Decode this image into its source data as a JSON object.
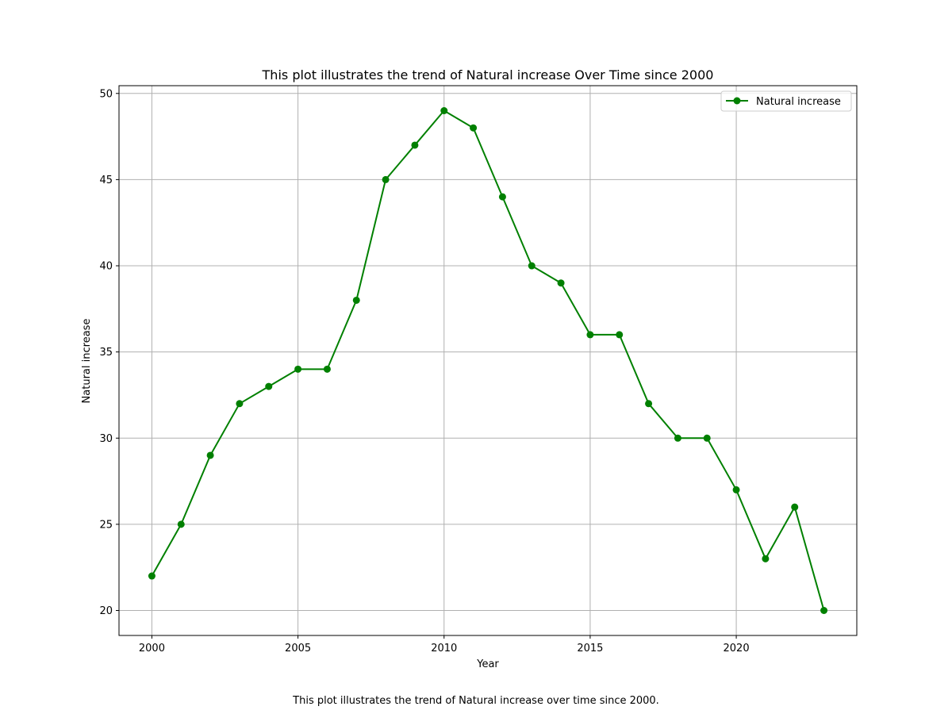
{
  "chart_data": {
    "type": "line",
    "title": "This plot illustrates the trend of Natural increase Over Time since 2000",
    "xlabel": "Year",
    "ylabel": "Natural increase",
    "x": [
      2000,
      2001,
      2002,
      2003,
      2004,
      2005,
      2006,
      2007,
      2008,
      2009,
      2010,
      2011,
      2012,
      2013,
      2014,
      2015,
      2016,
      2017,
      2018,
      2019,
      2020,
      2021,
      2022,
      2023
    ],
    "series": [
      {
        "name": "Natural increase",
        "color": "#008000",
        "values": [
          22,
          25,
          29,
          32,
          33,
          34,
          34,
          38,
          45,
          47,
          49,
          48,
          44,
          40,
          39,
          36,
          36,
          32,
          30,
          30,
          27,
          23,
          26,
          20
        ]
      }
    ],
    "xlim": [
      1998.875,
      2024.125
    ],
    "ylim": [
      18.55,
      50.45
    ],
    "xticks": [
      2000,
      2005,
      2010,
      2015,
      2020
    ],
    "yticks": [
      20,
      25,
      30,
      35,
      40,
      45,
      50
    ],
    "grid": true,
    "legend_position": "top-right"
  },
  "caption": "This plot illustrates the trend of Natural increase over time since 2000."
}
